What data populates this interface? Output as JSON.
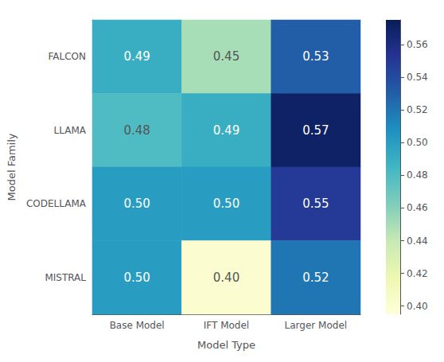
{
  "chart_data": {
    "type": "heatmap",
    "xlabel": "Model Type",
    "ylabel": "Model Family",
    "categories": [
      "Base Model",
      "IFT Model",
      "Larger Model"
    ],
    "y_categories": [
      "FALCON",
      "LLAMA",
      "CODELLAMA",
      "MISTRAL"
    ],
    "values": [
      [
        0.49,
        0.45,
        0.53
      ],
      [
        0.48,
        0.49,
        0.57
      ],
      [
        0.5,
        0.5,
        0.55
      ],
      [
        0.5,
        0.4,
        0.52
      ]
    ],
    "value_labels": [
      [
        "0.49",
        "0.45",
        "0.53"
      ],
      [
        "0.48",
        "0.49",
        "0.57"
      ],
      [
        "0.50",
        "0.50",
        "0.55"
      ],
      [
        "0.50",
        "0.40",
        "0.52"
      ]
    ],
    "data_labels": true,
    "color": "YlGnBu",
    "colorbar_range": [
      0.395,
      0.575
    ],
    "colorbar_ticks": [
      {
        "value": 0.4,
        "label": "0.40"
      },
      {
        "value": 0.42,
        "label": "0.42"
      },
      {
        "value": 0.44,
        "label": "0.44"
      },
      {
        "value": 0.46,
        "label": "0.46"
      },
      {
        "value": 0.48,
        "label": "0.48"
      },
      {
        "value": 0.5,
        "label": "0.50"
      },
      {
        "value": 0.52,
        "label": "0.52"
      },
      {
        "value": 0.54,
        "label": "0.54"
      },
      {
        "value": 0.56,
        "label": "0.56"
      }
    ]
  }
}
